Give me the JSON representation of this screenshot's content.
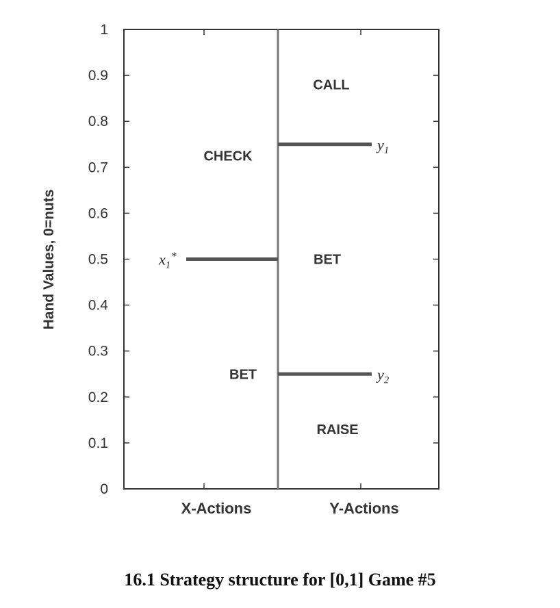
{
  "chart_data": {
    "type": "other",
    "ylabel": "Hand Values, 0=nuts",
    "ylim": [
      0,
      1
    ],
    "y_ticks": [
      0,
      0.1,
      0.2,
      0.3,
      0.4,
      0.5,
      0.6,
      0.7,
      0.8,
      0.9,
      1
    ],
    "y_tick_labels": [
      "0",
      "0.1",
      "0.2",
      "0.3",
      "0.4",
      "0.5",
      "0.6",
      "0.7",
      "0.8",
      "0.9",
      "1"
    ],
    "columns": [
      {
        "label": "X-Actions",
        "regions": [
          {
            "label": "CHECK",
            "y": 0.725
          },
          {
            "label": "BET",
            "y": 0.25
          }
        ],
        "thresholds": [
          {
            "label": "x",
            "sub": "1",
            "sup": "*",
            "y": 0.5
          }
        ]
      },
      {
        "label": "Y-Actions",
        "regions": [
          {
            "label": "CALL",
            "y": 0.88
          },
          {
            "label": "BET",
            "y": 0.5
          },
          {
            "label": "RAISE",
            "y": 0.13
          }
        ],
        "thresholds": [
          {
            "label": "y",
            "sub": "1",
            "y": 0.75
          },
          {
            "label": "y",
            "sub": "2",
            "y": 0.25
          }
        ]
      }
    ],
    "colors": {
      "axis": "#333333",
      "threshold_line": "#555555",
      "divider": "#777777"
    }
  },
  "caption": "16.1 Strategy structure for [0,1] Game #5"
}
